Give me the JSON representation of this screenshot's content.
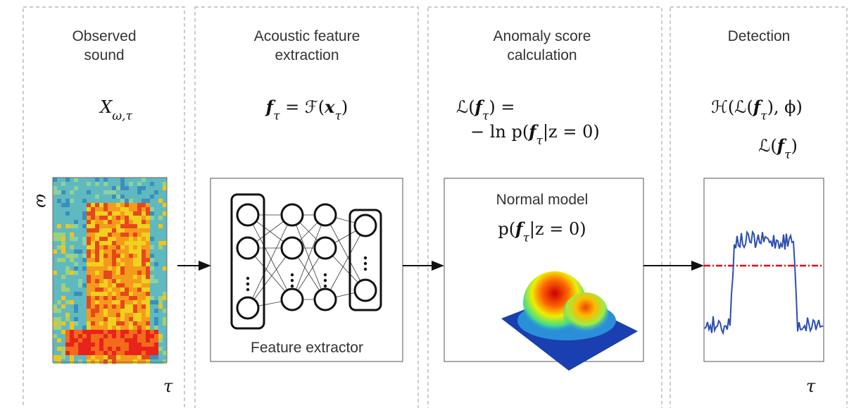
{
  "columns": [
    {
      "title": [
        "Observed",
        "sound"
      ]
    },
    {
      "title": [
        "Acoustic feature",
        "extraction"
      ]
    },
    {
      "title": [
        "Anomaly score",
        "calculation"
      ]
    },
    {
      "title": [
        "Detection"
      ]
    }
  ],
  "formulas": [
    [
      {
        "text": "X"
      },
      {
        "text": "ω,τ",
        "sub": true
      }
    ],
    [
      {
        "text": "f",
        "bold": true
      },
      {
        "text": "τ",
        "sub": true
      },
      {
        "text": " = ℱ("
      },
      {
        "text": "x",
        "bold": true
      },
      {
        "text": "τ",
        "sub": true
      },
      {
        "text": ")"
      }
    ],
    [
      {
        "text": "ℒ("
      },
      {
        "text": "f",
        "bold": true
      },
      {
        "text": "τ",
        "sub": true
      },
      {
        "text": ") ="
      }
    ],
    [
      {
        "text": "− ln p("
      },
      {
        "text": "f",
        "bold": true
      },
      {
        "text": "τ",
        "sub": true
      },
      {
        "text": "|z = 0)"
      }
    ],
    [
      {
        "text": "ℋ(ℒ("
      },
      {
        "text": "f",
        "bold": true
      },
      {
        "text": "τ",
        "sub": true
      },
      {
        "text": "), ϕ)"
      }
    ],
    [
      {
        "text": "ℒ("
      },
      {
        "text": "f",
        "bold": true
      },
      {
        "text": "τ",
        "sub": true
      },
      {
        "text": ")"
      }
    ],
    [
      {
        "text": "p("
      },
      {
        "text": "f",
        "bold": true
      },
      {
        "text": "τ",
        "sub": true
      },
      {
        "text": "|z = 0)"
      }
    ]
  ],
  "boxes": {
    "extractor": "Feature extractor",
    "model": "Normal model"
  },
  "axes": {
    "freq": "ω",
    "time_left": "τ",
    "time_right": "τ"
  }
}
